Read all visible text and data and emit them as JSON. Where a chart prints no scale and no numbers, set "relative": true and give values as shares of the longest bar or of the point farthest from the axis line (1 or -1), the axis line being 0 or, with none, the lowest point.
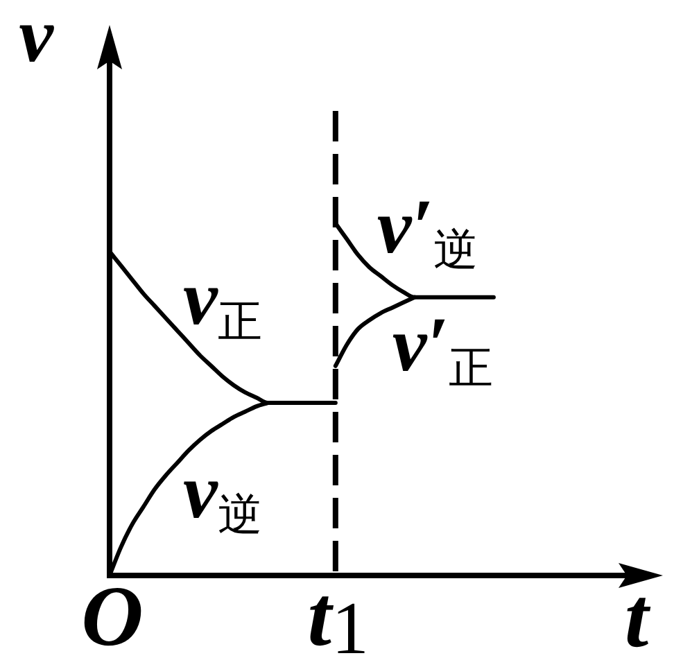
{
  "chart_data": {
    "type": "line",
    "relative": true,
    "xlabel": "t",
    "ylabel": "v",
    "categories": [
      "O",
      null,
      null,
      null,
      null,
      null,
      null,
      null,
      null,
      null,
      null,
      null,
      null,
      null,
      null,
      null,
      null,
      null,
      null,
      null,
      "t$_{1}$",
      null,
      null,
      null,
      null,
      null,
      null,
      null,
      null,
      null,
      null,
      null,
      null,
      null,
      null,
      null,
      null,
      null,
      null,
      null,
      null,
      null,
      null,
      null,
      null,
      null,
      null,
      null,
      null
    ],
    "ref_lines": [
      {
        "axis": "x",
        "value": "t$_{1}$",
        "line_style": "dashed",
        "color": "#000000"
      }
    ],
    "series": [
      {
        "name": "v$_{正}$",
        "color": "#000000",
        "values": [
          0.92,
          0.88,
          0.84,
          0.8,
          0.765,
          0.73,
          0.695,
          0.66,
          0.625,
          0.595,
          0.565,
          0.54,
          0.52,
          0.505,
          0.49,
          0.49,
          0.49,
          0.49,
          0.49,
          0.49,
          0.49,
          null,
          null,
          null,
          null,
          null,
          null,
          null,
          null,
          null,
          null,
          null,
          null,
          null,
          null,
          null,
          null,
          null,
          null,
          null,
          null,
          null,
          null,
          null,
          null,
          null,
          null,
          null,
          null
        ]
      },
      {
        "name": "v$_{逆}$",
        "color": "#000000",
        "values": [
          0,
          0.08,
          0.145,
          0.195,
          0.245,
          0.285,
          0.32,
          0.355,
          0.385,
          0.41,
          0.43,
          0.45,
          0.465,
          0.48,
          0.49,
          null,
          null,
          null,
          null,
          null,
          null,
          null,
          null,
          null,
          null,
          null,
          null,
          null,
          null,
          null,
          null,
          null,
          null,
          null,
          null,
          null,
          null,
          null,
          null,
          null,
          null,
          null,
          null,
          null,
          null,
          null,
          null,
          null,
          null
        ]
      },
      {
        "name": "v′$_{逆}$",
        "color": "#000000",
        "values": [
          null,
          null,
          null,
          null,
          null,
          null,
          null,
          null,
          null,
          null,
          null,
          null,
          null,
          null,
          null,
          null,
          null,
          null,
          null,
          null,
          1.0,
          0.955,
          0.91,
          0.875,
          0.85,
          0.825,
          0.805,
          0.79,
          0.79,
          0.79,
          0.79,
          0.79,
          0.79,
          0.79,
          0.79,
          null,
          null,
          null,
          null,
          null,
          null,
          null,
          null,
          null,
          null,
          null,
          null,
          null,
          null
        ]
      },
      {
        "name": "v′$_{正}$",
        "color": "#000000",
        "values": [
          null,
          null,
          null,
          null,
          null,
          null,
          null,
          null,
          null,
          null,
          null,
          null,
          null,
          null,
          null,
          null,
          null,
          null,
          null,
          null,
          0.595,
          0.655,
          0.7,
          0.725,
          0.745,
          0.76,
          0.775,
          0.79,
          null,
          null,
          null,
          null,
          null,
          null,
          null,
          null,
          null,
          null,
          null,
          null,
          null,
          null,
          null,
          null,
          null,
          null,
          null,
          null,
          null
        ]
      }
    ]
  }
}
